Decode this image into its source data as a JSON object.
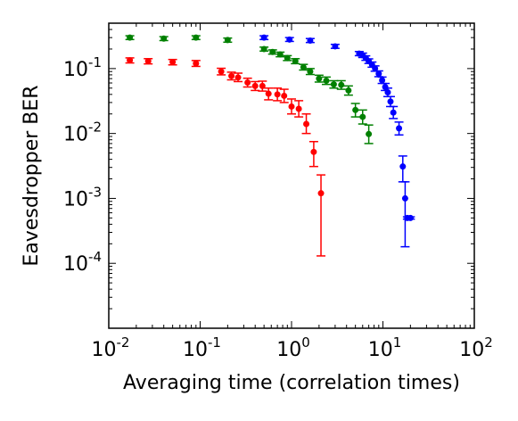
{
  "chart_data": {
    "type": "scatter",
    "title": "",
    "xlabel": "Averaging time (correlation times)",
    "ylabel": "Eavesdropper BER",
    "x_scale": "log",
    "y_scale": "log",
    "xlim": [
      0.01,
      100
    ],
    "ylim": [
      1e-05,
      0.5
    ],
    "x_ticks": [
      {
        "value": 0.01,
        "base": "10",
        "exp": "-2"
      },
      {
        "value": 0.1,
        "base": "10",
        "exp": "-1"
      },
      {
        "value": 1,
        "base": "10",
        "exp": "0"
      },
      {
        "value": 10,
        "base": "10",
        "exp": "1"
      },
      {
        "value": 100,
        "base": "10",
        "exp": "2"
      }
    ],
    "y_ticks": [
      {
        "value": 0.1,
        "base": "10",
        "exp": "-1"
      },
      {
        "value": 0.01,
        "base": "10",
        "exp": "-2"
      },
      {
        "value": 0.001,
        "base": "10",
        "exp": "-3"
      },
      {
        "value": 0.0001,
        "base": "10",
        "exp": "-4"
      }
    ],
    "grid": false,
    "legend": "none",
    "series": [
      {
        "color": "#ff0000",
        "points": [
          {
            "x": 0.017,
            "y": 0.134,
            "lo": 0.122,
            "hi": 0.146
          },
          {
            "x": 0.027,
            "y": 0.13,
            "lo": 0.118,
            "hi": 0.142
          },
          {
            "x": 0.05,
            "y": 0.126,
            "lo": 0.114,
            "hi": 0.138
          },
          {
            "x": 0.09,
            "y": 0.12,
            "lo": 0.108,
            "hi": 0.133
          },
          {
            "x": 0.17,
            "y": 0.09,
            "lo": 0.08,
            "hi": 0.101
          },
          {
            "x": 0.22,
            "y": 0.077,
            "lo": 0.067,
            "hi": 0.088
          },
          {
            "x": 0.26,
            "y": 0.073,
            "lo": 0.063,
            "hi": 0.085
          },
          {
            "x": 0.33,
            "y": 0.061,
            "lo": 0.052,
            "hi": 0.071
          },
          {
            "x": 0.4,
            "y": 0.054,
            "lo": 0.046,
            "hi": 0.063
          },
          {
            "x": 0.48,
            "y": 0.054,
            "lo": 0.045,
            "hi": 0.064
          },
          {
            "x": 0.56,
            "y": 0.041,
            "lo": 0.033,
            "hi": 0.05
          },
          {
            "x": 0.7,
            "y": 0.04,
            "lo": 0.032,
            "hi": 0.05
          },
          {
            "x": 0.83,
            "y": 0.038,
            "lo": 0.03,
            "hi": 0.048
          },
          {
            "x": 1.0,
            "y": 0.026,
            "lo": 0.02,
            "hi": 0.034
          },
          {
            "x": 1.2,
            "y": 0.024,
            "lo": 0.018,
            "hi": 0.032
          },
          {
            "x": 1.45,
            "y": 0.014,
            "lo": 0.01,
            "hi": 0.02
          },
          {
            "x": 1.75,
            "y": 0.0052,
            "lo": 0.0031,
            "hi": 0.0075
          },
          {
            "x": 2.1,
            "y": 0.0012,
            "lo": 0.00013,
            "hi": 0.0023
          }
        ]
      },
      {
        "color": "#008000",
        "points": [
          {
            "x": 0.017,
            "y": 0.3,
            "lo": 0.28,
            "hi": 0.32
          },
          {
            "x": 0.04,
            "y": 0.29,
            "lo": 0.27,
            "hi": 0.31
          },
          {
            "x": 0.09,
            "y": 0.3,
            "lo": 0.28,
            "hi": 0.32
          },
          {
            "x": 0.2,
            "y": 0.275,
            "lo": 0.255,
            "hi": 0.295
          },
          {
            "x": 0.5,
            "y": 0.2,
            "lo": 0.186,
            "hi": 0.214
          },
          {
            "x": 0.62,
            "y": 0.18,
            "lo": 0.167,
            "hi": 0.194
          },
          {
            "x": 0.75,
            "y": 0.165,
            "lo": 0.152,
            "hi": 0.179
          },
          {
            "x": 0.9,
            "y": 0.145,
            "lo": 0.133,
            "hi": 0.158
          },
          {
            "x": 1.1,
            "y": 0.13,
            "lo": 0.119,
            "hi": 0.142
          },
          {
            "x": 1.35,
            "y": 0.105,
            "lo": 0.095,
            "hi": 0.116
          },
          {
            "x": 1.6,
            "y": 0.09,
            "lo": 0.081,
            "hi": 0.1
          },
          {
            "x": 2.0,
            "y": 0.07,
            "lo": 0.062,
            "hi": 0.079
          },
          {
            "x": 2.4,
            "y": 0.065,
            "lo": 0.057,
            "hi": 0.074
          },
          {
            "x": 2.9,
            "y": 0.057,
            "lo": 0.05,
            "hi": 0.065
          },
          {
            "x": 3.5,
            "y": 0.056,
            "lo": 0.048,
            "hi": 0.065
          },
          {
            "x": 4.2,
            "y": 0.046,
            "lo": 0.039,
            "hi": 0.054
          },
          {
            "x": 5.0,
            "y": 0.023,
            "lo": 0.018,
            "hi": 0.029
          },
          {
            "x": 6.0,
            "y": 0.018,
            "lo": 0.014,
            "hi": 0.023
          },
          {
            "x": 7.0,
            "y": 0.0098,
            "lo": 0.007,
            "hi": 0.0135
          }
        ]
      },
      {
        "color": "#0000ff",
        "points": [
          {
            "x": 0.5,
            "y": 0.3,
            "lo": 0.28,
            "hi": 0.32
          },
          {
            "x": 0.95,
            "y": 0.28,
            "lo": 0.262,
            "hi": 0.3
          },
          {
            "x": 1.6,
            "y": 0.27,
            "lo": 0.252,
            "hi": 0.29
          },
          {
            "x": 3.0,
            "y": 0.22,
            "lo": 0.205,
            "hi": 0.236
          },
          {
            "x": 5.5,
            "y": 0.17,
            "lo": 0.158,
            "hi": 0.183
          },
          {
            "x": 6.0,
            "y": 0.16,
            "lo": 0.148,
            "hi": 0.173
          },
          {
            "x": 6.5,
            "y": 0.145,
            "lo": 0.134,
            "hi": 0.157
          },
          {
            "x": 7.0,
            "y": 0.13,
            "lo": 0.12,
            "hi": 0.141
          },
          {
            "x": 7.6,
            "y": 0.115,
            "lo": 0.105,
            "hi": 0.126
          },
          {
            "x": 8.2,
            "y": 0.1,
            "lo": 0.091,
            "hi": 0.11
          },
          {
            "x": 9.0,
            "y": 0.083,
            "lo": 0.075,
            "hi": 0.092
          },
          {
            "x": 9.8,
            "y": 0.066,
            "lo": 0.059,
            "hi": 0.074
          },
          {
            "x": 10.6,
            "y": 0.052,
            "lo": 0.046,
            "hi": 0.059
          },
          {
            "x": 11.3,
            "y": 0.043,
            "lo": 0.037,
            "hi": 0.05
          },
          {
            "x": 12.1,
            "y": 0.031,
            "lo": 0.026,
            "hi": 0.037
          },
          {
            "x": 13.0,
            "y": 0.021,
            "lo": 0.017,
            "hi": 0.026
          },
          {
            "x": 15.0,
            "y": 0.012,
            "lo": 0.0095,
            "hi": 0.015
          },
          {
            "x": 16.5,
            "y": 0.0031,
            "lo": 0.0018,
            "hi": 0.0045
          },
          {
            "x": 17.5,
            "y": 0.001,
            "lo": 0.00018,
            "hi": 0.0018
          },
          {
            "x": 18.5,
            "y": 0.0005,
            "lo": 0.00048,
            "hi": 0.00052
          },
          {
            "x": 20.0,
            "y": 0.0005,
            "lo": 0.00048,
            "hi": 0.00052
          }
        ]
      }
    ]
  }
}
